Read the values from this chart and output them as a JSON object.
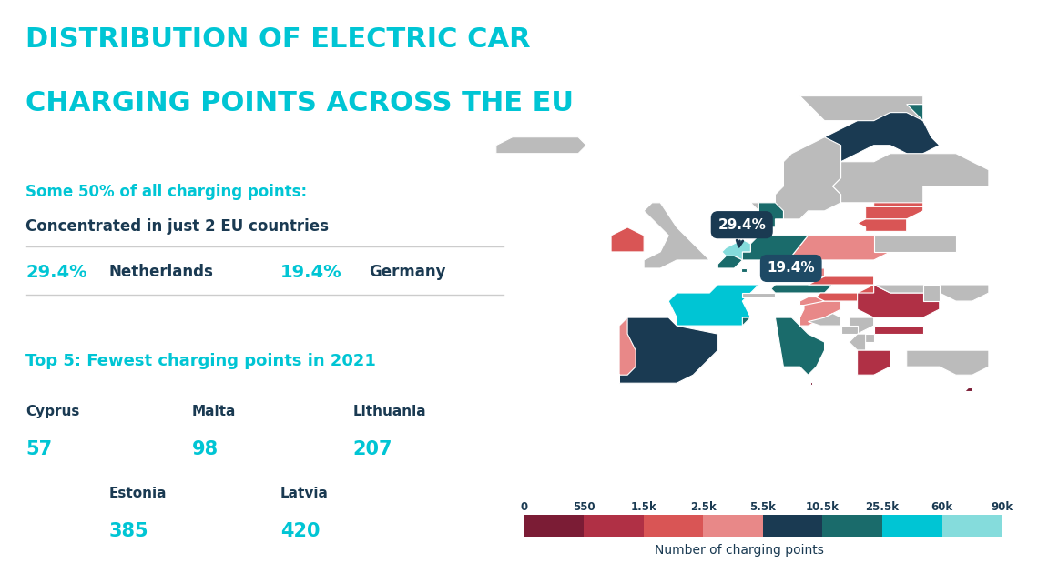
{
  "title_line1": "DISTRIBUTION OF ELECTRIC CAR",
  "title_line2": "CHARGING POINTS ACROSS THE EU",
  "title_color": "#00C5D4",
  "bg_color": "#FFFFFF",
  "subtitle_colored": "Some 50% of all charging points:",
  "subtitle_bold": "Concentrated in just 2 EU countries",
  "pct1": "29.4%",
  "country1": "Netherlands",
  "pct2": "19.4%",
  "country2": "Germany",
  "section2_title": "Top 5: Fewest charging points in 2021",
  "accent_color": "#00C5D4",
  "dark_navy": "#1A3A52",
  "legend_labels": [
    "0",
    "550",
    "1.5k",
    "2.5k",
    "5.5k",
    "10.5k",
    "25.5k",
    "60k",
    "90k"
  ],
  "legend_colors": [
    "#7B1C35",
    "#B03045",
    "#D95555",
    "#E88888",
    "#1A3A52",
    "#1A6B6B",
    "#00C5D4",
    "#85DCDC"
  ],
  "colors": {
    "dark_maroon": "#7B1C35",
    "maroon": "#B03045",
    "red": "#D95555",
    "salmon": "#E88888",
    "navy": "#1A3A52",
    "teal_dark": "#1A6B6B",
    "teal": "#1A8C8C",
    "cyan": "#00C5D4",
    "light_cyan": "#85DCDC",
    "gray": "#BBBBBB",
    "white": "#FFFFFF"
  },
  "callout1_text": "29.4%",
  "callout1_color": "#1A3A52",
  "callout2_text": "19.4%",
  "callout2_color": "#1E4A65"
}
